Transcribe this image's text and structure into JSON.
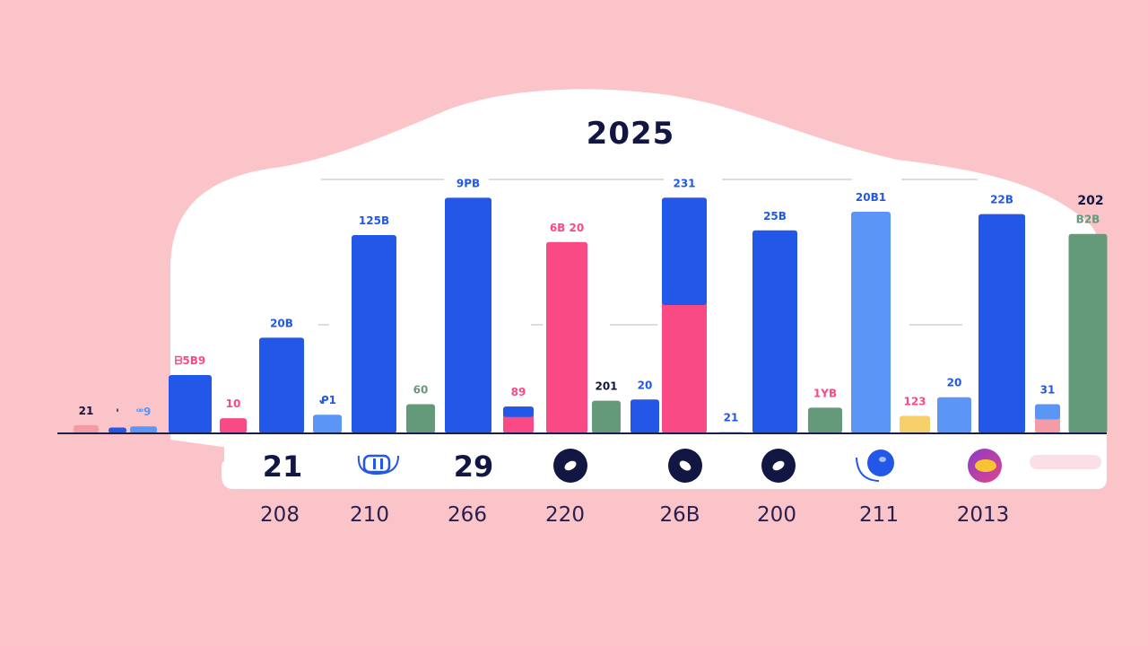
{
  "colors": {
    "background": "#fbc4c8",
    "panel": "#ffffff",
    "blue": "#2257e8",
    "light_blue": "#5b95f6",
    "pink": "#fa4a86",
    "green": "#64997a",
    "salmon": "#f39ba6",
    "yellow": "#f6d06a",
    "navy": "#121642",
    "axis": "#1b1f4a"
  },
  "icons": [
    "ring-icon",
    "dark-circle-icon",
    "dark-circle-icon",
    "dark-circle-icon",
    "blue-circle-icon",
    "gradient-circle-icon",
    "blank-pill-icon"
  ],
  "chart_data": {
    "type": "bar",
    "title": "2025",
    "grid": false,
    "legend": "none",
    "ylim": [
      0,
      100
    ],
    "bars": [
      {
        "value": 3.5,
        "color": "salmon",
        "label": "21",
        "label_color": "navy"
      },
      {
        "value": 2.5,
        "color": "blue",
        "label": "'",
        "label_color": "navy"
      },
      {
        "value": 3,
        "color": "light_blue",
        "label": "ꟹ9",
        "label_color": "light_blue"
      },
      {
        "value": 25,
        "color": "blue",
        "label": "ᗷ5B9",
        "label_color": "pink"
      },
      {
        "value": 6.5,
        "color": "pink",
        "label": "10",
        "label_color": "pink"
      },
      {
        "value": 41,
        "color": "blue",
        "label": "20B",
        "label_color": "blue"
      },
      {
        "value": 8,
        "color": "light_blue",
        "label": "ᕵ1",
        "label_color": "blue"
      },
      {
        "value": 85,
        "color": "blue",
        "label": "125B",
        "label_color": "blue"
      },
      {
        "value": 12.5,
        "color": "green",
        "label": "60",
        "label_color": "green"
      },
      {
        "value": 101,
        "color": "blue",
        "label": "9PB",
        "label_color": "blue"
      },
      {
        "value": 11.5,
        "color": "pink",
        "top": 4.5,
        "top_color": "blue",
        "label": "89",
        "label_color": "pink"
      },
      {
        "value": 82,
        "color": "pink",
        "label": "6B 20",
        "label_color": "pink"
      },
      {
        "value": 14,
        "color": "green",
        "label": "201",
        "label_color": "navy"
      },
      {
        "value": 14.5,
        "color": "blue",
        "label": "20",
        "label_color": "blue"
      },
      {
        "value": 101,
        "color": "pink",
        "top": 46,
        "top_color": "blue",
        "label": "231",
        "label_color": "blue"
      },
      {
        "value": 0.5,
        "color": "blue",
        "label": "21",
        "label_color": "blue"
      },
      {
        "value": 87,
        "color": "blue",
        "label": "25B",
        "label_color": "blue"
      },
      {
        "value": 11,
        "color": "green",
        "label": "1YB",
        "label_color": "pink"
      },
      {
        "value": 95,
        "color": "light_blue",
        "label": "20B1",
        "label_color": "blue"
      },
      {
        "value": 7.5,
        "color": "yellow",
        "label": "123",
        "label_color": "pink"
      },
      {
        "value": 15.5,
        "color": "light_blue",
        "label": "20",
        "label_color": "blue"
      },
      {
        "value": 94,
        "color": "blue",
        "label": "22B",
        "label_color": "blue"
      },
      {
        "value": 12.5,
        "color": "salmon",
        "top": 6.5,
        "top_color": "light_blue",
        "label": "31",
        "label_color": "blue"
      },
      {
        "value": 85.5,
        "color": "green",
        "label": "B2B",
        "label_color": "green"
      }
    ],
    "extra_label": "202",
    "row_labels": [
      "21",
      "29"
    ],
    "categories": [
      "208",
      "210",
      "266",
      "220",
      "26B",
      "200",
      "211",
      "2013"
    ]
  }
}
